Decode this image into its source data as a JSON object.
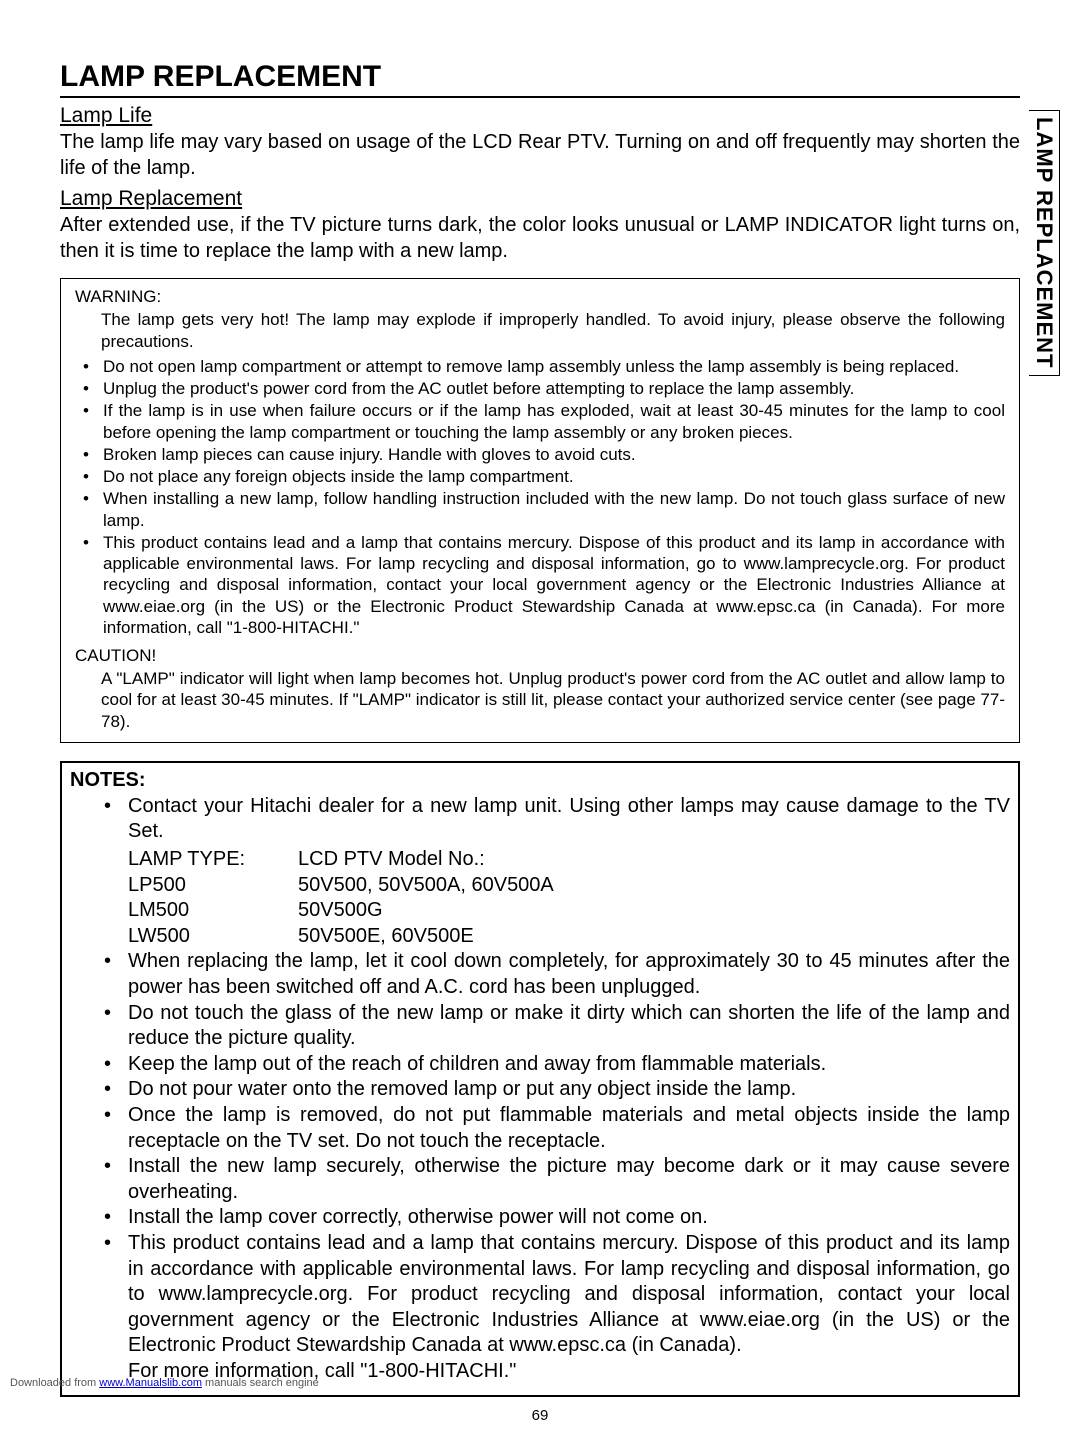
{
  "sideTab": "LAMP REPLACEMENT",
  "title": "LAMP REPLACEMENT",
  "section1": {
    "heading": "Lamp Life",
    "body": "The lamp life may vary based on usage of the LCD Rear PTV.  Turning on and off frequently may shorten the life of the lamp."
  },
  "section2": {
    "heading": "Lamp Replacement",
    "body": "After extended use, if the TV picture turns dark, the color looks unusual or LAMP INDICATOR light turns on, then it is time to replace the lamp with a new lamp."
  },
  "warning": {
    "title": "WARNING:",
    "intro": "The lamp gets very hot!  The lamp may explode if improperly handled.  To avoid injury, please observe the following precautions.",
    "items": [
      "Do not open lamp compartment or attempt to remove lamp assembly unless the lamp assembly is being replaced.",
      "Unplug the product's power cord from the AC outlet before attempting to replace the lamp assembly.",
      "If the lamp is in use when failure occurs or if the lamp has exploded, wait at least 30-45 minutes for the lamp to cool before opening the lamp compartment or touching the lamp assembly or any broken pieces.",
      "Broken lamp pieces can cause injury.  Handle with gloves to avoid cuts.",
      "Do not place any foreign objects inside the lamp compartment.",
      "When installing a new lamp, follow handling instruction included with the new lamp.  Do not touch glass surface of new lamp.",
      "This product contains lead and a lamp that contains mercury.  Dispose of this product and its lamp in accordance with applicable environmental laws.  For lamp recycling and disposal information, go to www.lamprecycle.org.  For product recycling and disposal information, contact your local government agency or the Electronic Industries Alliance at www.eiae.org (in the US) or the Electronic Product Stewardship Canada at www.epsc.ca (in Canada).  For more information, call \"1-800-HITACHI.\""
    ],
    "cautionTitle": "CAUTION!",
    "cautionBody": "A \"LAMP\" indicator will light when lamp becomes hot.  Unplug product's power cord from the AC outlet and allow lamp to cool for at least 30-45 minutes.  If \"LAMP\" indicator is still lit, please contact your authorized service center (see page 77-78)."
  },
  "notes": {
    "title": "NOTES:",
    "item1": "Contact your Hitachi dealer for a new lamp unit.  Using other lamps may cause damage to the TV Set.",
    "tableHeader": {
      "c1": "LAMP TYPE:",
      "c2": "LCD PTV Model No.:"
    },
    "tableRows": [
      {
        "c1": "LP500",
        "c2": "50V500, 50V500A, 60V500A"
      },
      {
        "c1": "LM500",
        "c2": "50V500G"
      },
      {
        "c1": "LW500",
        "c2": "50V500E, 60V500E"
      }
    ],
    "rest": [
      "When replacing the lamp, let it cool down completely, for approximately 30 to 45 minutes after the power has been switched off and A.C. cord has been unplugged.",
      "Do not touch the glass of the new lamp or make it dirty which can shorten the life of the lamp and reduce the picture quality.",
      "Keep the lamp out of the reach of children and away from flammable materials.",
      "Do not pour water onto the removed lamp or put any object inside the lamp.",
      "Once the lamp is removed, do not put flammable materials and metal objects inside the lamp receptacle on the TV set.  Do not touch the receptacle.",
      "Install the new lamp securely, otherwise the picture may become dark or it may cause severe overheating.",
      "Install the lamp cover correctly, otherwise power will not come on.",
      "This product contains lead and a lamp that contains mercury.  Dispose of this product and its lamp in accordance with applicable environmental laws.  For lamp recycling and disposal information, go to www.lamprecycle.org.  For product recycling and disposal information, contact your local government agency or the Electronic Industries Alliance at www.eiae.org (in the US) or the Electronic Product Stewardship Canada at www.epsc.ca (in Canada).\nFor more information, call \"1-800-HITACHI.\""
    ]
  },
  "pageNumber": "69",
  "footer": {
    "prefix": "Downloaded from ",
    "link": "www.Manualslib.com",
    "suffix": " manuals search engine"
  }
}
